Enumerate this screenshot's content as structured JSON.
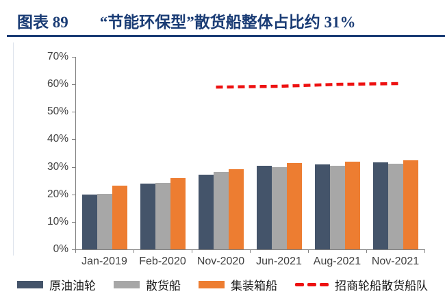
{
  "title": {
    "prefix": "图表 89",
    "text": "“节能环保型”散货船整体占比约 31%"
  },
  "colors": {
    "title": "#1a3c75",
    "underline": "#1a3c75",
    "axis": "#808080",
    "tick_label": "#3f3f3f",
    "bar_dark": "#44546A",
    "bar_gray": "#A7A7A7",
    "bar_orange": "#ED7D31",
    "line_red": "#ED1111"
  },
  "chart_data": {
    "type": "bar",
    "title": "“节能环保型”散货船整体占比约 31%",
    "categories": [
      "Jan-2019",
      "Feb-2020",
      "Nov-2020",
      "Jun-2021",
      "Aug-2021",
      "Nov-2021"
    ],
    "series": [
      {
        "name": "原油油轮",
        "kind": "bar",
        "color": "#44546A",
        "values": [
          20.0,
          23.8,
          27.2,
          30.3,
          30.9,
          31.7
        ]
      },
      {
        "name": "散货船",
        "kind": "bar",
        "color": "#A7A7A7",
        "values": [
          20.2,
          24.2,
          28.2,
          30.0,
          30.5,
          31.1
        ]
      },
      {
        "name": "集装箱船",
        "kind": "bar",
        "color": "#ED7D31",
        "values": [
          23.1,
          26.0,
          29.2,
          31.3,
          31.8,
          32.5
        ]
      },
      {
        "name": "招商轮船散货船队",
        "kind": "line",
        "dashed": true,
        "color": "#ED1111",
        "values": [
          null,
          null,
          59.0,
          59.3,
          60.0,
          60.3
        ]
      }
    ],
    "ylim": [
      0,
      70
    ],
    "ytick_step": 10,
    "yticks": [
      "0%",
      "10%",
      "20%",
      "30%",
      "40%",
      "50%",
      "60%",
      "70%"
    ],
    "xlabel": "",
    "ylabel": "",
    "grid": false,
    "legend_position": "bottom"
  }
}
